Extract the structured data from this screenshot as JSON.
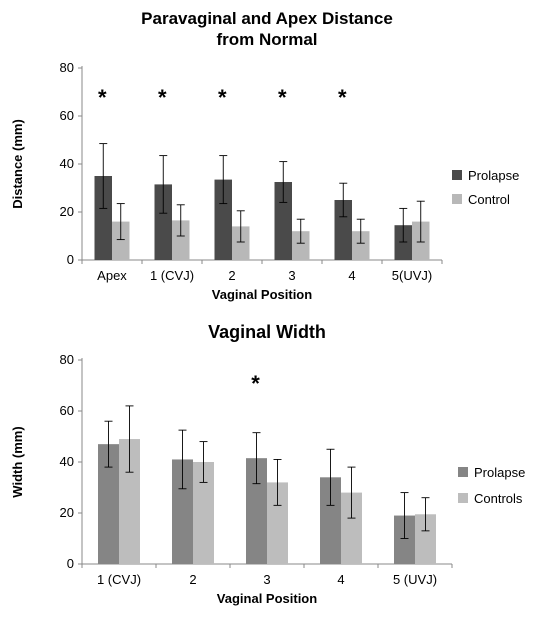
{
  "chart_data": [
    {
      "type": "bar",
      "title": "Paravaginal and Apex Distance from Normal",
      "xlabel": "Vaginal Position",
      "ylabel": "Distance (mm)",
      "ylim": [
        0,
        80
      ],
      "yticks": [
        0,
        20,
        40,
        60,
        80
      ],
      "grid": false,
      "legend_position": "right",
      "categories": [
        "Apex",
        "1 (CVJ)",
        "2",
        "3",
        "4",
        "5(UVJ)"
      ],
      "series": [
        {
          "name": "Prolapse",
          "color": "#4a4a4a",
          "values": [
            35,
            31.5,
            33.5,
            32.5,
            25,
            14.5
          ],
          "errors": [
            13.5,
            12,
            10,
            8.5,
            7,
            7
          ]
        },
        {
          "name": "Control",
          "color": "#b8b8b8",
          "values": [
            16,
            16.5,
            14,
            12,
            12,
            16
          ],
          "errors": [
            7.5,
            6.5,
            6.5,
            5,
            5,
            8.5
          ]
        }
      ],
      "significance": [
        "*",
        "*",
        "*",
        "*",
        "*",
        ""
      ]
    },
    {
      "type": "bar",
      "title": "Vaginal Width",
      "xlabel": "Vaginal Position",
      "ylabel": "Width (mm)",
      "ylim": [
        0,
        80
      ],
      "yticks": [
        0,
        20,
        40,
        60,
        80
      ],
      "grid": false,
      "legend_position": "right",
      "categories": [
        "1 (CVJ)",
        "2",
        "3",
        "4",
        "5 (UVJ)"
      ],
      "series": [
        {
          "name": "Prolapse",
          "color": "#858585",
          "values": [
            47,
            41,
            41.5,
            34,
            19
          ],
          "errors": [
            9,
            11.5,
            10,
            11,
            9
          ]
        },
        {
          "name": "Controls",
          "color": "#bdbdbd",
          "values": [
            49,
            40,
            32,
            28,
            19.5
          ],
          "errors": [
            13,
            8,
            9,
            10,
            6.5
          ]
        }
      ],
      "significance": [
        "",
        "",
        "*",
        "",
        ""
      ]
    }
  ]
}
